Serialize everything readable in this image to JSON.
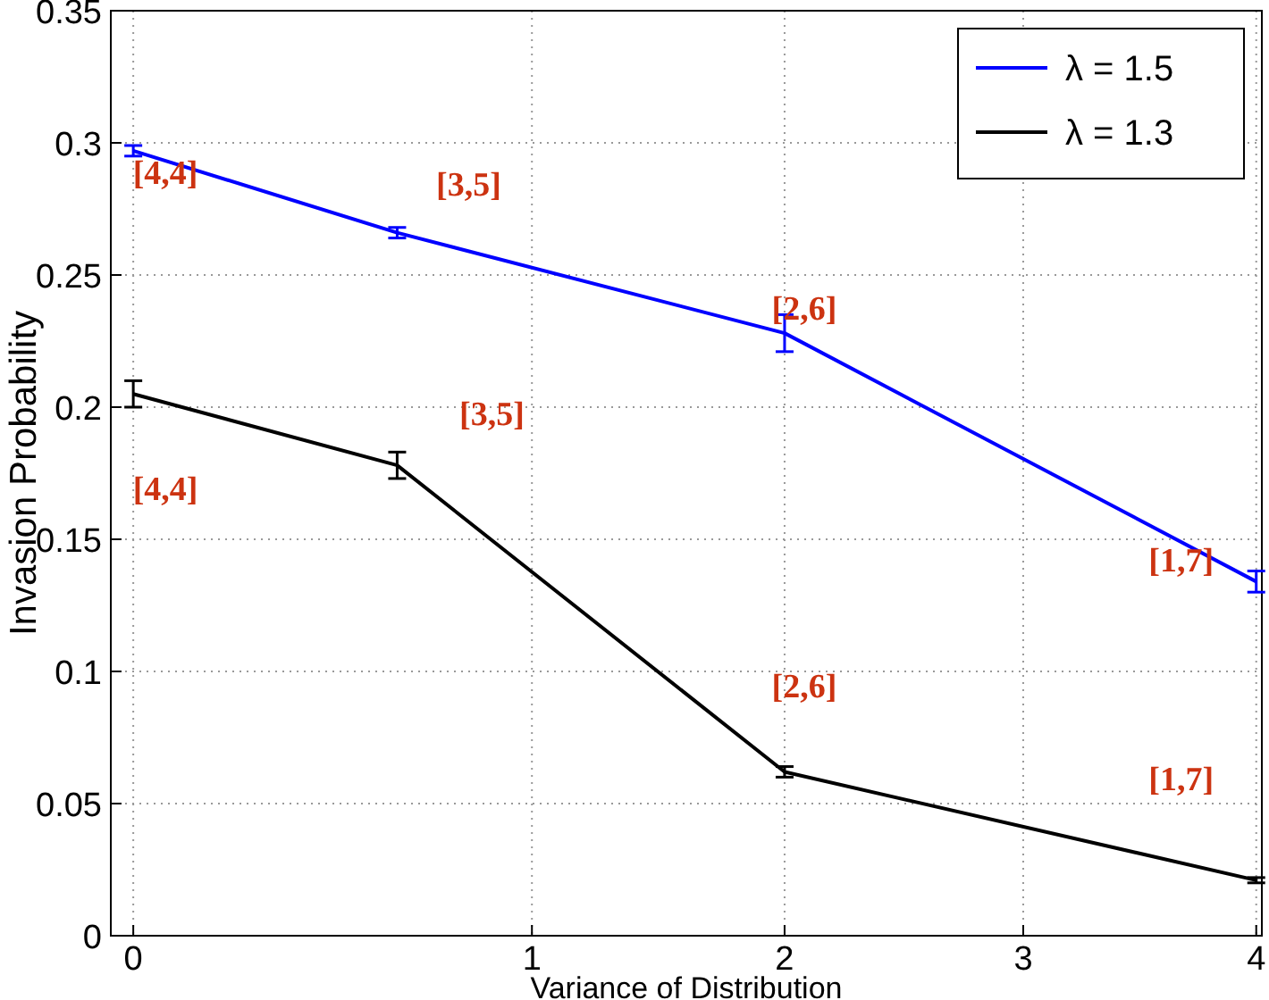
{
  "chart_data": {
    "type": "line",
    "xlabel": "Variance of Distribution",
    "ylabel": "Invasion Probability",
    "x": [
      0,
      0.94,
      2.32,
      4
    ],
    "series": [
      {
        "name": "λ = 1.5",
        "color": "#0000ff",
        "values": [
          0.297,
          0.266,
          0.228,
          0.134
        ],
        "errors": [
          0.002,
          0.002,
          0.007,
          0.004
        ]
      },
      {
        "name": "λ = 1.3",
        "color": "#000000",
        "values": [
          0.205,
          0.178,
          0.062,
          0.021
        ],
        "errors": [
          0.005,
          0.005,
          0.002,
          0.001
        ]
      }
    ],
    "xlim": [
      -0.08,
      4.02
    ],
    "xticks": [
      0,
      {
        "value": 1.42,
        "label": "1"
      },
      {
        "value": 2.32,
        "label": "2"
      },
      {
        "value": 3.17,
        "label": "3"
      },
      4
    ],
    "ylim": [
      0,
      0.35
    ],
    "yticks": [
      0,
      0.05,
      0.1,
      0.15,
      0.2,
      0.25,
      0.3,
      0.35
    ],
    "grid": true,
    "legend": "top right",
    "marker": "none",
    "line_style": "solid",
    "annotations": [
      {
        "text": "[4,4]",
        "x": 0,
        "y": 0.297
      },
      {
        "text": "[3,5]",
        "x": 0.94,
        "y": 0.266
      },
      {
        "text": "[2,6]",
        "x": 2.32,
        "y": 0.228
      },
      {
        "text": "[1,7]",
        "x": 4,
        "y": 0.134
      },
      {
        "text": "[4,4]",
        "x": 0,
        "y": 0.205
      },
      {
        "text": "[3,5]",
        "x": 0.94,
        "y": 0.178
      },
      {
        "text": "[2,6]",
        "x": 2.32,
        "y": 0.062
      },
      {
        "text": "[1,7]",
        "x": 4,
        "y": 0.021
      }
    ]
  }
}
